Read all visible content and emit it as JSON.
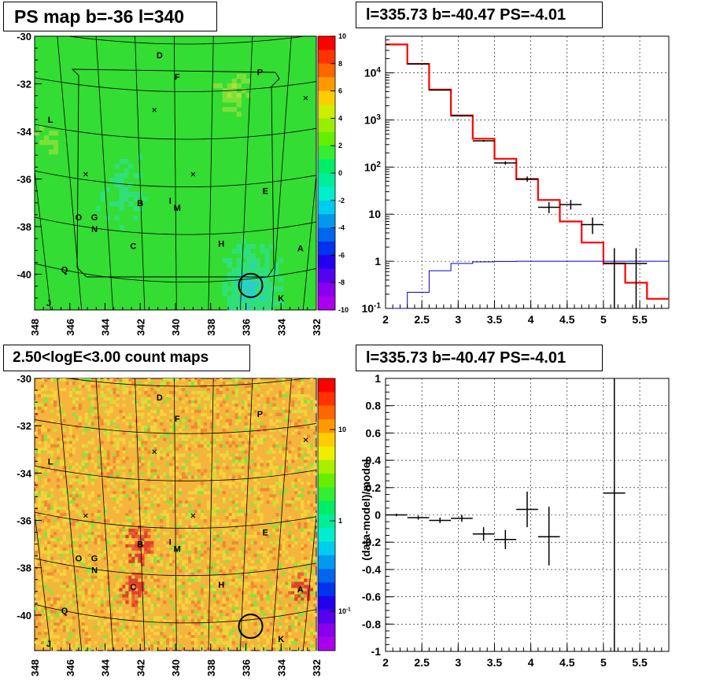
{
  "titles": {
    "ps_map": "PS map b=-36 l=340",
    "spectrum": "l=335.73 b=-40.47 PS=-4.01",
    "count_maps": "2.50<logE<3.00 count maps",
    "residual": "l=335.73 b=-40.47 PS=-4.01"
  },
  "colors": {
    "data": "#000000",
    "model": "#ff0000",
    "background": "#0000cc",
    "map_green": "#33dd33",
    "map_orange": "#f5b43c"
  },
  "chart_data": [
    {
      "type": "heatmap",
      "name": "ps_map",
      "title": "PS map b=-36 l=340",
      "xlim": [
        348,
        332
      ],
      "ylim": [
        -41.5,
        -30
      ],
      "xticks": [
        "348",
        "346",
        "344",
        "342",
        "340",
        "338",
        "336",
        "334",
        "332"
      ],
      "yticks": [
        "-30",
        "-32",
        "-34",
        "-36",
        "-38",
        "-40"
      ],
      "zlim": [
        -10,
        10
      ],
      "zticks": [
        "10",
        "8",
        "6",
        "4",
        "2",
        "0",
        "-2",
        "-4",
        "-6",
        "-8",
        "-10"
      ],
      "labels": [
        {
          "text": "D",
          "l": 340.9,
          "b": -30.8
        },
        {
          "text": "F",
          "l": 339.9,
          "b": -31.7
        },
        {
          "text": "P",
          "l": 335.2,
          "b": -31.5
        },
        {
          "text": "L",
          "l": 347.1,
          "b": -33.5
        },
        {
          "text": "E",
          "l": 334.9,
          "b": -36.5
        },
        {
          "text": "B",
          "l": 342.0,
          "b": -37.0
        },
        {
          "text": "I",
          "l": 340.3,
          "b": -36.9
        },
        {
          "text": "M",
          "l": 339.9,
          "b": -37.2
        },
        {
          "text": "O",
          "l": 345.5,
          "b": -37.6
        },
        {
          "text": "G",
          "l": 344.6,
          "b": -37.6
        },
        {
          "text": "N",
          "l": 344.6,
          "b": -38.1
        },
        {
          "text": "C",
          "l": 342.4,
          "b": -38.8
        },
        {
          "text": "H",
          "l": 337.4,
          "b": -38.7
        },
        {
          "text": "A",
          "l": 332.9,
          "b": -38.9
        },
        {
          "text": "Q",
          "l": 346.3,
          "b": -39.8
        },
        {
          "text": "J",
          "l": 347.2,
          "b": -41.2
        },
        {
          "text": "K",
          "l": 334.0,
          "b": -41.0
        }
      ],
      "markers": [
        {
          "l": 341.2,
          "b": -33.1
        },
        {
          "l": 332.6,
          "b": -32.6
        },
        {
          "l": 345.1,
          "b": -35.8
        },
        {
          "l": 339.0,
          "b": -35.8
        }
      ],
      "circle": {
        "l": 335.73,
        "b": -40.47
      }
    },
    {
      "type": "line",
      "name": "spectrum",
      "title": "l=335.73 b=-40.47 PS=-4.01",
      "xlim": [
        2,
        5.9
      ],
      "ylim": [
        0.1,
        60000
      ],
      "yscale": "log",
      "xticks": [
        "2",
        "2.5",
        "3",
        "3.5",
        "4",
        "4.5",
        "5",
        "5.5"
      ],
      "yticks": [
        "10^-1",
        "1",
        "10",
        "10^2",
        "10^3",
        "10^4"
      ],
      "grid": true,
      "bin_edges": [
        2.0,
        2.3,
        2.6,
        2.9,
        3.2,
        3.5,
        3.8,
        4.1,
        4.4,
        4.7,
        5.0,
        5.3,
        5.6,
        5.9
      ],
      "series": [
        {
          "role": "model",
          "values": [
            40000,
            15500,
            4400,
            1250,
            400,
            150,
            55,
            20,
            7,
            2.5,
            0.9,
            0.35,
            0.16
          ]
        },
        {
          "role": "background",
          "values": [
            0.03,
            0.22,
            0.63,
            0.9,
            0.97,
            0.99,
            1,
            1,
            1,
            1,
            1,
            1,
            1
          ]
        }
      ],
      "points": [
        {
          "x": 2.45,
          "y": 15500,
          "elo": 15000,
          "ehi": 16000,
          "xerr": 0.15
        },
        {
          "x": 2.75,
          "y": 4300,
          "elo": 4200,
          "ehi": 4400,
          "xerr": 0.15
        },
        {
          "x": 3.05,
          "y": 1220,
          "elo": 1180,
          "ehi": 1260,
          "xerr": 0.15
        },
        {
          "x": 3.35,
          "y": 360,
          "elo": 345,
          "ehi": 375,
          "xerr": 0.15
        },
        {
          "x": 3.65,
          "y": 122,
          "elo": 112,
          "ehi": 132,
          "xerr": 0.15
        },
        {
          "x": 3.95,
          "y": 56,
          "elo": 49,
          "ehi": 63,
          "xerr": 0.15
        },
        {
          "x": 4.25,
          "y": 14,
          "elo": 10.5,
          "ehi": 18,
          "xerr": 0.15
        },
        {
          "x": 4.55,
          "y": 16,
          "elo": 12.5,
          "ehi": 20,
          "xerr": 0.15
        },
        {
          "x": 4.85,
          "y": 6,
          "elo": 3.8,
          "ehi": 8.5,
          "xerr": 0.15
        },
        {
          "x": 5.15,
          "y": 0.9,
          "elo": 0.1,
          "ehi": 1.9,
          "xerr": 0.15
        },
        {
          "x": 5.45,
          "y": 0.9,
          "elo": 0.1,
          "ehi": 1.9,
          "xerr": 0.15
        }
      ]
    },
    {
      "type": "heatmap",
      "name": "count_maps",
      "title": "2.50<logE<3.00 count maps",
      "xlim": [
        348,
        332
      ],
      "ylim": [
        -41.5,
        -30
      ],
      "xticks": [
        "348",
        "346",
        "344",
        "342",
        "340",
        "338",
        "336",
        "334",
        "332"
      ],
      "yticks": [
        "-30",
        "-32",
        "-34",
        "-36",
        "-38",
        "-40"
      ],
      "zscale": "log",
      "zticks": [
        "10",
        "1",
        "10^-1"
      ],
      "labels": [
        {
          "text": "D",
          "l": 340.9,
          "b": -30.8
        },
        {
          "text": "F",
          "l": 339.9,
          "b": -31.7
        },
        {
          "text": "P",
          "l": 335.2,
          "b": -31.5
        },
        {
          "text": "L",
          "l": 347.1,
          "b": -33.5
        },
        {
          "text": "E",
          "l": 334.9,
          "b": -36.5
        },
        {
          "text": "B",
          "l": 342.0,
          "b": -37.0
        },
        {
          "text": "I",
          "l": 340.3,
          "b": -36.9
        },
        {
          "text": "M",
          "l": 339.9,
          "b": -37.2
        },
        {
          "text": "O",
          "l": 345.5,
          "b": -37.6
        },
        {
          "text": "G",
          "l": 344.6,
          "b": -37.6
        },
        {
          "text": "N",
          "l": 344.6,
          "b": -38.1
        },
        {
          "text": "C",
          "l": 342.4,
          "b": -38.8
        },
        {
          "text": "H",
          "l": 337.4,
          "b": -38.7
        },
        {
          "text": "A",
          "l": 332.9,
          "b": -38.9
        },
        {
          "text": "Q",
          "l": 346.3,
          "b": -39.8
        },
        {
          "text": "J",
          "l": 347.2,
          "b": -41.2
        },
        {
          "text": "K",
          "l": 334.0,
          "b": -41.0
        }
      ],
      "markers": [
        {
          "l": 341.2,
          "b": -33.1
        },
        {
          "l": 332.6,
          "b": -32.6
        },
        {
          "l": 345.1,
          "b": -35.8
        },
        {
          "l": 339.0,
          "b": -35.8
        }
      ],
      "circle": {
        "l": 335.73,
        "b": -40.47
      }
    },
    {
      "type": "scatter",
      "name": "residual",
      "title": "l=335.73 b=-40.47 PS=-4.01",
      "ylabel": "(data-model)/model",
      "xlim": [
        2,
        5.9
      ],
      "ylim": [
        -1,
        1
      ],
      "xticks": [
        "2",
        "2.5",
        "3",
        "3.5",
        "4",
        "4.5",
        "5",
        "5.5"
      ],
      "yticks": [
        "1",
        "0.8",
        "0.6",
        "0.4",
        "0.2",
        "0",
        "-0.2",
        "-0.4",
        "-0.6",
        "-0.8",
        "-1"
      ],
      "grid": true,
      "points": [
        {
          "x": 2.15,
          "y": 0.0,
          "elo": -0.01,
          "ehi": 0.01,
          "xerr": 0.15
        },
        {
          "x": 2.45,
          "y": -0.02,
          "elo": -0.035,
          "ehi": -0.005,
          "xerr": 0.15
        },
        {
          "x": 2.75,
          "y": -0.04,
          "elo": -0.06,
          "ehi": -0.02,
          "xerr": 0.15
        },
        {
          "x": 3.05,
          "y": -0.025,
          "elo": -0.05,
          "ehi": 0.0,
          "xerr": 0.15
        },
        {
          "x": 3.35,
          "y": -0.14,
          "elo": -0.19,
          "ehi": -0.09,
          "xerr": 0.15
        },
        {
          "x": 3.65,
          "y": -0.18,
          "elo": -0.25,
          "ehi": -0.11,
          "xerr": 0.15
        },
        {
          "x": 3.95,
          "y": 0.04,
          "elo": -0.09,
          "ehi": 0.17,
          "xerr": 0.15
        },
        {
          "x": 4.25,
          "y": -0.16,
          "elo": -0.37,
          "ehi": 0.06,
          "xerr": 0.15
        },
        {
          "x": 5.15,
          "y": 0.16,
          "elo": -1.0,
          "ehi": 1.0,
          "xerr": 0.15
        }
      ]
    }
  ]
}
